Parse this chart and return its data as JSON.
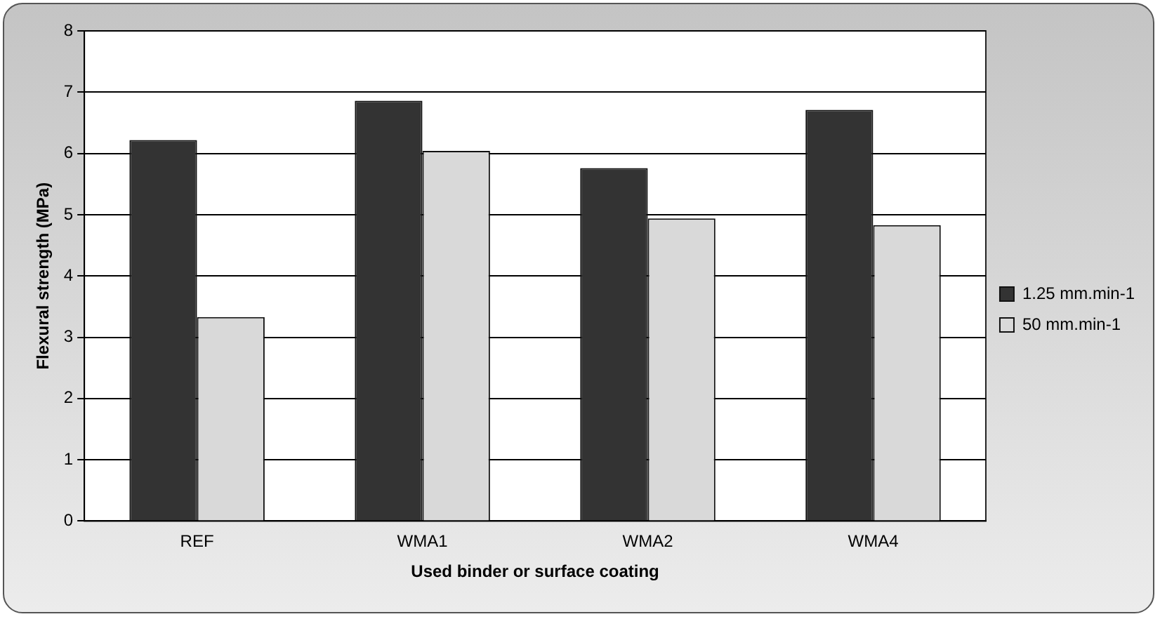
{
  "chart_data": {
    "type": "bar",
    "xlabel": "Used binder or surface coating",
    "ylabel": "Flexural strength (MPa)",
    "categories": [
      "REF",
      "WMA1",
      "WMA2",
      "WMA4"
    ],
    "series": [
      {
        "name": "1.25 mm.min-1",
        "color": "#333333",
        "values": [
          6.22,
          6.86,
          5.76,
          6.71
        ]
      },
      {
        "name": "50 mm.min-1",
        "color": "#d9d9d9",
        "values": [
          3.33,
          6.04,
          4.94,
          4.83
        ]
      }
    ],
    "ylim": [
      0,
      8
    ],
    "yticks": [
      0,
      1,
      2,
      3,
      4,
      5,
      6,
      7,
      8
    ],
    "grid": "y",
    "legend": "right"
  }
}
